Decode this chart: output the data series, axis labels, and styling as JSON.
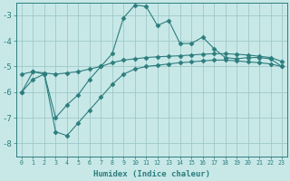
{
  "xlabel": "Humidex (Indice chaleur)",
  "ylabel": "",
  "background_color": "#c8e8e8",
  "grid_color": "#a0c8c8",
  "line_color": "#2d7d7d",
  "ylim": [
    -8.5,
    -2.5
  ],
  "xlim": [
    -0.5,
    23.5
  ],
  "x_ticks": [
    0,
    1,
    2,
    3,
    4,
    5,
    6,
    7,
    8,
    9,
    10,
    11,
    12,
    13,
    14,
    15,
    16,
    17,
    18,
    19,
    20,
    21,
    22,
    23
  ],
  "y_ticks": [
    -8,
    -7,
    -6,
    -5,
    -4,
    -3
  ],
  "series": [
    {
      "x": [
        0,
        1,
        2,
        3,
        4,
        5,
        6,
        7,
        8,
        9,
        10,
        11,
        12,
        13,
        14,
        15,
        16,
        17,
        18,
        19,
        20,
        21,
        22,
        23
      ],
      "y": [
        -6.0,
        -5.2,
        -5.3,
        -7.0,
        -6.5,
        -6.1,
        -5.5,
        -5.0,
        -4.5,
        -3.1,
        -2.6,
        -2.65,
        -3.4,
        -3.2,
        -4.1,
        -4.1,
        -3.85,
        -4.3,
        -4.65,
        -4.7,
        -4.65,
        -4.65,
        -4.7,
        -5.0
      ],
      "marker": "D",
      "markersize": 2.5
    },
    {
      "x": [
        0,
        1,
        2,
        3,
        4,
        5,
        6,
        7,
        8,
        9,
        10,
        11,
        12,
        13,
        14,
        15,
        16,
        17,
        18,
        19,
        20,
        21,
        22,
        23
      ],
      "y": [
        -5.3,
        -5.2,
        -5.25,
        -5.3,
        -5.25,
        -5.2,
        -5.1,
        -5.0,
        -4.85,
        -4.75,
        -4.7,
        -4.65,
        -4.62,
        -4.6,
        -4.58,
        -4.55,
        -4.52,
        -4.5,
        -4.5,
        -4.52,
        -4.55,
        -4.6,
        -4.65,
        -4.8
      ],
      "marker": "D",
      "markersize": 2.5
    },
    {
      "x": [
        0,
        1,
        2,
        3,
        4,
        5,
        6,
        7,
        8,
        9,
        10,
        11,
        12,
        13,
        14,
        15,
        16,
        17,
        18,
        19,
        20,
        21,
        22,
        23
      ],
      "y": [
        -6.0,
        -5.5,
        -5.3,
        -7.55,
        -7.7,
        -7.2,
        -6.7,
        -6.2,
        -5.7,
        -5.3,
        -5.1,
        -5.0,
        -4.95,
        -4.9,
        -4.85,
        -4.82,
        -4.78,
        -4.75,
        -4.75,
        -4.78,
        -4.82,
        -4.85,
        -4.9,
        -5.0
      ],
      "marker": "D",
      "markersize": 2.5
    }
  ]
}
